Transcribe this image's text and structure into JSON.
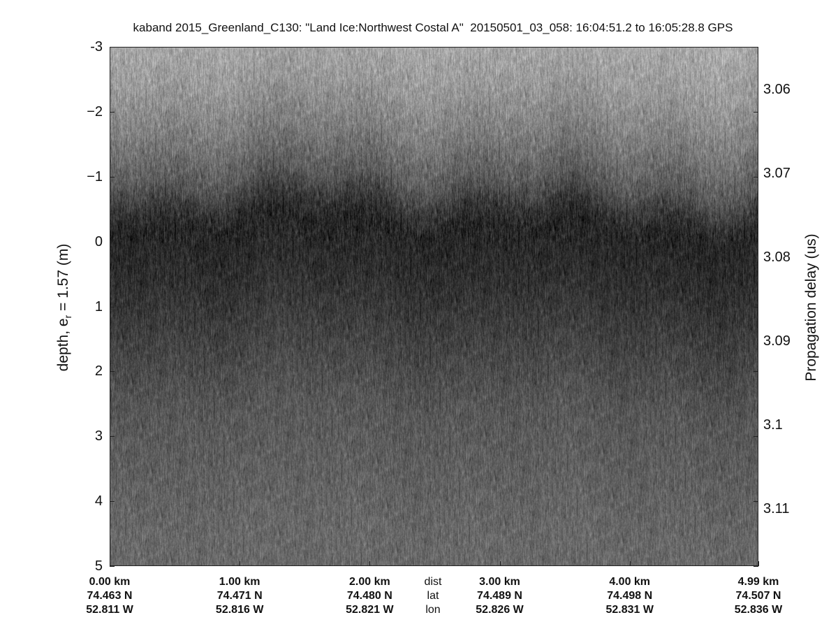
{
  "chart_data": {
    "type": "heatmap",
    "title": "kaband 2015_Greenland_C130: \"Land Ice:Northwest Costal A\"  20150501_03_058: 16:04:51.2 to 16:05:28.8 GPS",
    "colormap": "gray",
    "ylabel_left": "depth, e",
    "ylabel_left_sub": "r",
    "ylabel_left_rest": " = 1.57 (m)",
    "ylabel_right": "Propagation delay (us)",
    "ylim_left": [
      -3,
      5
    ],
    "yticks_left": [
      "-3",
      "−2",
      "−1",
      "0",
      "1",
      "2",
      "3",
      "4",
      "5"
    ],
    "yticks_left_values": [
      -3,
      -2,
      -1,
      0,
      1,
      2,
      3,
      4,
      5
    ],
    "yticks_right": [
      "3.06",
      "3.07",
      "3.08",
      "3.09",
      "3.1",
      "3.11"
    ],
    "yticks_right_values": [
      3.06,
      3.07,
      3.08,
      3.09,
      3.1,
      3.11
    ],
    "x_axis_rows": {
      "labels": [
        "dist",
        "lat",
        "lon"
      ],
      "dist": [
        "0.00 km",
        "1.00 km",
        "2.00 km",
        "3.00 km",
        "4.00 km",
        "4.99 km"
      ],
      "dist_values_km": [
        0.0,
        1.0,
        2.0,
        3.0,
        4.0,
        4.99
      ],
      "lat": [
        "74.463 N",
        "74.471 N",
        "74.480 N",
        "74.489 N",
        "74.498 N",
        "74.507 N"
      ],
      "lon": [
        "52.811 W",
        "52.816 W",
        "52.821 W",
        "52.826 W",
        "52.831 W",
        "52.836 W"
      ]
    },
    "surface_depth_m": -0.2,
    "xlim_km": [
      0,
      4.99
    ],
    "grid": false
  }
}
